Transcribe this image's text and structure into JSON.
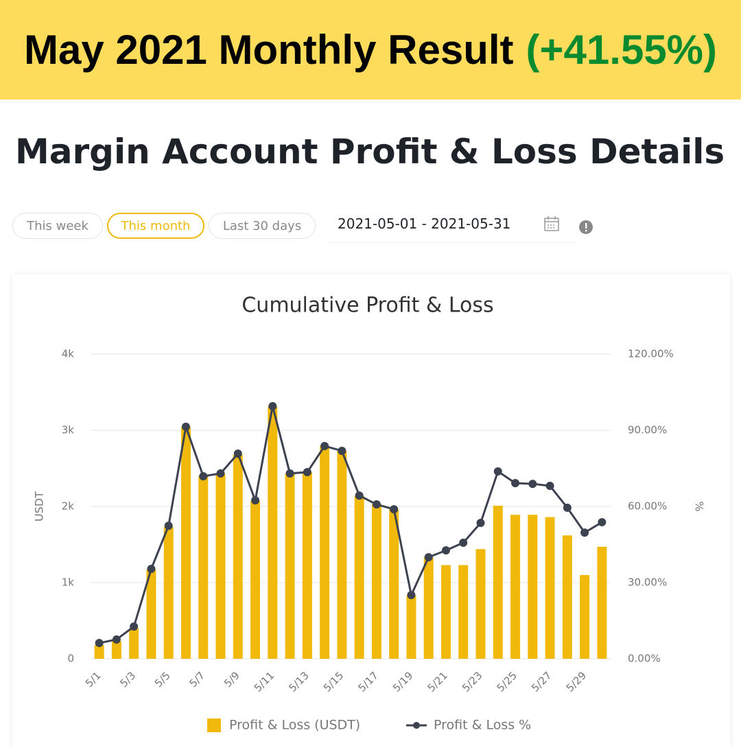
{
  "banner": {
    "title": "May 2021 Monthly Result",
    "result": "(+41.55%)"
  },
  "heading": "Margin Account Profit & Loss Details",
  "toolbar": {
    "buttons": [
      "This week",
      "This month",
      "Last 30 days"
    ],
    "selected": "This month",
    "date_range": "2021-05-01 - 2021-05-31"
  },
  "chart_data": {
    "type": "bar",
    "title": "Cumulative Profit & Loss",
    "y_label": "USDT",
    "y2_label": "%",
    "categories": [
      "5/1",
      null,
      "5/3",
      null,
      "5/5",
      null,
      "5/7",
      null,
      "5/9",
      null,
      "5/11",
      null,
      "5/13",
      null,
      "5/15",
      null,
      "5/17",
      null,
      "5/19",
      null,
      "5/21",
      null,
      "5/23",
      null,
      "5/25",
      null,
      "5/27",
      null,
      "5/29",
      null
    ],
    "series": [
      {
        "name": "Profit & Loss (USDT)",
        "type": "bar",
        "color": "#f0b90b",
        "values": [
          180,
          230,
          400,
          1170,
          1730,
          3040,
          2400,
          2430,
          2680,
          2070,
          3310,
          2430,
          2450,
          2790,
          2730,
          2140,
          2030,
          1960,
          830,
          1330,
          1230,
          1230,
          1440,
          2010,
          1890,
          1890,
          1860,
          1620,
          1100,
          1470
        ]
      },
      {
        "name": "Profit & Loss %",
        "type": "line",
        "axis": "y2",
        "color": "#3c4250",
        "values": [
          6.2,
          7.6,
          12.7,
          35.4,
          52.4,
          91.4,
          71.9,
          73.0,
          80.8,
          62.4,
          99.5,
          73.0,
          73.5,
          83.8,
          81.9,
          64.3,
          60.8,
          58.9,
          25.1,
          40.0,
          42.7,
          45.7,
          53.5,
          73.8,
          69.2,
          68.9,
          68.1,
          59.5,
          49.7,
          53.8
        ]
      }
    ],
    "ylim": [
      0,
      4000
    ],
    "yticks": [
      0,
      {
        "value": 1000,
        "label": "1k"
      },
      {
        "value": 2000,
        "label": "2k"
      },
      {
        "value": 3000,
        "label": "3k"
      },
      {
        "value": 4000,
        "label": "4k"
      }
    ],
    "y2lim": [
      0,
      120
    ],
    "y2ticks": [
      {
        "value": 0,
        "label": "0.00%"
      },
      {
        "value": 30,
        "label": "30.00%"
      },
      {
        "value": 60,
        "label": "60.00%"
      },
      {
        "value": 90,
        "label": "90.00%"
      },
      {
        "value": 120,
        "label": "120.00%"
      }
    ],
    "grid": true,
    "legend": "bottom"
  }
}
